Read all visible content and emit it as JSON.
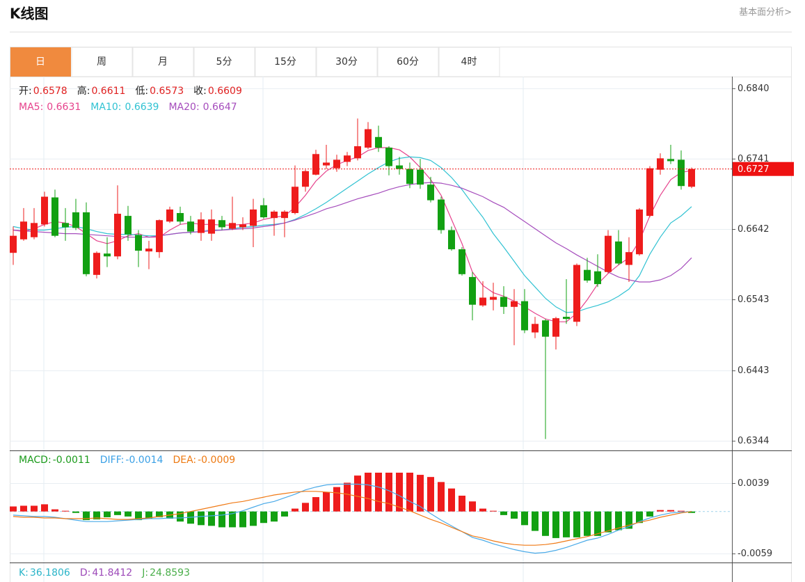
{
  "header": {
    "title": "K线图",
    "link": "基本面分析>"
  },
  "tabs": [
    "日",
    "周",
    "月",
    "5分",
    "15分",
    "30分",
    "60分",
    "4时"
  ],
  "active_tab": 0,
  "chart_data": [
    {
      "type": "candlestick",
      "legend": [
        {
          "label": "开:",
          "value": 0.6578
        },
        {
          "label": "高:",
          "value": 0.6611
        },
        {
          "label": "低:",
          "value": 0.6573
        },
        {
          "label": "收:",
          "value": 0.6609
        }
      ],
      "legend_label_color": "#222",
      "legend_value_color": "#e02020",
      "up_color": "#ee1c1c",
      "down_color": "#12a012",
      "open": [
        0.6609,
        0.6628,
        0.6631,
        0.6649,
        0.6687,
        0.6651,
        0.6666,
        0.6666,
        0.6578,
        0.6608,
        0.6604,
        0.6661,
        0.6634,
        0.6611,
        0.661,
        0.6653,
        0.6665,
        0.6653,
        0.6637,
        0.6636,
        0.6655,
        0.6643,
        0.6645,
        0.6647,
        0.6676,
        0.6658,
        0.6658,
        0.6665,
        0.6702,
        0.6719,
        0.6732,
        0.6728,
        0.6737,
        0.6742,
        0.6757,
        0.6772,
        0.6757,
        0.6732,
        0.6727,
        0.6726,
        0.6705,
        0.6684,
        0.6641,
        0.6614,
        0.6575,
        0.6535,
        0.6543,
        0.6547,
        0.6533,
        0.6541,
        0.6497,
        0.6514,
        0.6491,
        0.6519,
        0.6512,
        0.6585,
        0.6583,
        0.6582,
        0.6625,
        0.6592,
        0.6607,
        0.6661,
        0.6726,
        0.6741,
        0.674,
        0.6702
      ],
      "high": [
        0.6646,
        0.6672,
        0.6672,
        0.6695,
        0.6698,
        0.6672,
        0.6685,
        0.668,
        0.6611,
        0.6631,
        0.6704,
        0.6675,
        0.6641,
        0.6626,
        0.6656,
        0.6674,
        0.6674,
        0.6661,
        0.6666,
        0.667,
        0.6661,
        0.6688,
        0.6659,
        0.6685,
        0.6686,
        0.6669,
        0.6669,
        0.6732,
        0.6726,
        0.6754,
        0.6761,
        0.6747,
        0.6751,
        0.6798,
        0.6793,
        0.6788,
        0.6759,
        0.6744,
        0.6736,
        0.6741,
        0.6716,
        0.6688,
        0.6646,
        0.6617,
        0.6582,
        0.6569,
        0.6567,
        0.6562,
        0.6558,
        0.6558,
        0.6519,
        0.6516,
        0.6519,
        0.6572,
        0.6594,
        0.6602,
        0.6607,
        0.6641,
        0.6641,
        0.6631,
        0.6672,
        0.6731,
        0.6749,
        0.6761,
        0.6753,
        0.6729
      ],
      "low": [
        0.6592,
        0.6626,
        0.6628,
        0.6646,
        0.6631,
        0.6626,
        0.6641,
        0.6576,
        0.6573,
        0.6589,
        0.66,
        0.6626,
        0.6589,
        0.6586,
        0.6602,
        0.6651,
        0.6649,
        0.6635,
        0.6626,
        0.6626,
        0.6641,
        0.6641,
        0.6641,
        0.6617,
        0.6657,
        0.6633,
        0.6631,
        0.6663,
        0.6695,
        0.6718,
        0.6727,
        0.6723,
        0.6731,
        0.6739,
        0.6755,
        0.6751,
        0.6718,
        0.6719,
        0.67,
        0.6699,
        0.668,
        0.6636,
        0.6612,
        0.6577,
        0.6514,
        0.6533,
        0.6528,
        0.6523,
        0.6479,
        0.6496,
        0.6489,
        0.6347,
        0.6473,
        0.6509,
        0.6506,
        0.6567,
        0.6561,
        0.658,
        0.6592,
        0.6568,
        0.6605,
        0.6659,
        0.6719,
        0.6734,
        0.6698,
        0.67
      ],
      "close": [
        0.6633,
        0.6653,
        0.6651,
        0.6688,
        0.6633,
        0.6645,
        0.6644,
        0.6579,
        0.6609,
        0.6604,
        0.6664,
        0.6635,
        0.6612,
        0.6615,
        0.6655,
        0.667,
        0.6653,
        0.6639,
        0.6656,
        0.6656,
        0.6645,
        0.6651,
        0.6649,
        0.667,
        0.6659,
        0.6667,
        0.6667,
        0.6702,
        0.6724,
        0.6748,
        0.6736,
        0.674,
        0.6746,
        0.6759,
        0.6783,
        0.6757,
        0.6731,
        0.6727,
        0.6706,
        0.6705,
        0.6683,
        0.6641,
        0.6614,
        0.6579,
        0.6536,
        0.6546,
        0.6547,
        0.6533,
        0.6541,
        0.65,
        0.6509,
        0.6491,
        0.6517,
        0.6516,
        0.6592,
        0.657,
        0.6565,
        0.6633,
        0.6594,
        0.661,
        0.667,
        0.6728,
        0.6742,
        0.6738,
        0.6703,
        0.6727
      ],
      "series": [
        {
          "name": "MA5:",
          "current": 0.6631,
          "color": "#e6428c",
          "values": [
            0.6641,
            0.6639,
            0.6643,
            0.6649,
            0.6653,
            0.6651,
            0.6646,
            0.6636,
            0.6626,
            0.6622,
            0.6626,
            0.6633,
            0.6636,
            0.6631,
            0.6631,
            0.6641,
            0.6649,
            0.6651,
            0.6649,
            0.6649,
            0.6648,
            0.6648,
            0.6649,
            0.6651,
            0.6656,
            0.6659,
            0.6661,
            0.6673,
            0.669,
            0.671,
            0.6724,
            0.6733,
            0.6739,
            0.6744,
            0.6753,
            0.6757,
            0.6757,
            0.6754,
            0.6744,
            0.6729,
            0.6712,
            0.669,
            0.6656,
            0.6622,
            0.6582,
            0.6563,
            0.6553,
            0.6548,
            0.6541,
            0.6533,
            0.6524,
            0.6516,
            0.6512,
            0.6512,
            0.6524,
            0.6543,
            0.6565,
            0.658,
            0.6592,
            0.6602,
            0.6626,
            0.6661,
            0.669,
            0.6712,
            0.6722,
            0.6725
          ]
        },
        {
          "name": "MA10:",
          "current": 0.6639,
          "color": "#30c2d2",
          "values": [
            0.6646,
            0.6643,
            0.6641,
            0.6641,
            0.6643,
            0.6645,
            0.6646,
            0.6643,
            0.6639,
            0.6636,
            0.6635,
            0.6635,
            0.6634,
            0.6633,
            0.6633,
            0.6635,
            0.6637,
            0.6638,
            0.6639,
            0.6641,
            0.6641,
            0.6643,
            0.6645,
            0.6646,
            0.6648,
            0.6649,
            0.6651,
            0.6656,
            0.6663,
            0.6671,
            0.668,
            0.669,
            0.67,
            0.671,
            0.672,
            0.6729,
            0.6737,
            0.6742,
            0.6744,
            0.6743,
            0.6739,
            0.6729,
            0.6715,
            0.6698,
            0.6678,
            0.6659,
            0.6636,
            0.6617,
            0.6597,
            0.6577,
            0.6561,
            0.6545,
            0.6533,
            0.6525,
            0.6526,
            0.6531,
            0.6535,
            0.654,
            0.6548,
            0.6558,
            0.6577,
            0.6607,
            0.6631,
            0.6651,
            0.6661,
            0.6674
          ]
        },
        {
          "name": "MA20:",
          "current": 0.6647,
          "color": "#a54cbc",
          "values": [
            0.6641,
            0.664,
            0.6639,
            0.6638,
            0.6637,
            0.6636,
            0.6636,
            0.6635,
            0.6634,
            0.6633,
            0.6632,
            0.6631,
            0.6631,
            0.6631,
            0.6633,
            0.6635,
            0.6637,
            0.6638,
            0.6639,
            0.664,
            0.6641,
            0.6642,
            0.6643,
            0.6644,
            0.6646,
            0.6648,
            0.6651,
            0.6655,
            0.666,
            0.6665,
            0.6671,
            0.6675,
            0.668,
            0.6685,
            0.6689,
            0.6693,
            0.6698,
            0.6702,
            0.6705,
            0.6707,
            0.6708,
            0.6707,
            0.6704,
            0.67,
            0.6694,
            0.6688,
            0.668,
            0.6673,
            0.6663,
            0.6653,
            0.6643,
            0.6633,
            0.6623,
            0.6615,
            0.6606,
            0.6598,
            0.659,
            0.6582,
            0.6575,
            0.6571,
            0.6568,
            0.6568,
            0.6571,
            0.6577,
            0.6587,
            0.6602
          ]
        }
      ],
      "ylim": [
        0.6331,
        0.6857
      ],
      "yticks": [
        {
          "value": 0.684,
          "label": "0.6840"
        },
        0.6741,
        0.6642,
        0.6543,
        0.6443,
        0.6344
      ],
      "current_price": 0.6727,
      "current_color": "#ee1111",
      "grid": true
    },
    {
      "type": "macd",
      "legend": [
        {
          "label": "MACD:",
          "value": -0.0011,
          "color": "#1a9a1a"
        },
        {
          "label": "DIFF:",
          "value": -0.0014,
          "color": "#3aa0e6"
        },
        {
          "label": "DEA:",
          "value": -0.0009,
          "color": "#ee7a12"
        }
      ],
      "up_color": "#ee1c1c",
      "down_color": "#12a012",
      "values": [
        0.0007,
        0.0008,
        0.0008,
        0.001,
        0.0003,
        0.0001,
        -0.0002,
        -0.0012,
        -0.0011,
        -0.0008,
        -0.0005,
        -0.0007,
        -0.0012,
        -0.001,
        -0.0008,
        -0.001,
        -0.0014,
        -0.0017,
        -0.0019,
        -0.002,
        -0.0022,
        -0.0022,
        -0.0022,
        -0.002,
        -0.0016,
        -0.0014,
        -0.0007,
        0.0004,
        0.0012,
        0.002,
        0.0027,
        0.0034,
        0.004,
        0.005,
        0.0054,
        0.0054,
        0.0054,
        0.0054,
        0.0054,
        0.0051,
        0.0048,
        0.0041,
        0.0032,
        0.0022,
        0.0014,
        0.0004,
        0.0001,
        -0.0005,
        -0.001,
        -0.0019,
        -0.0027,
        -0.0034,
        -0.0037,
        -0.0036,
        -0.0036,
        -0.0034,
        -0.0034,
        -0.0029,
        -0.0026,
        -0.0024,
        -0.0016,
        -0.0007,
        0.0002,
        0.0002,
        0.0001,
        -0.0002
      ],
      "series": [
        {
          "name": "DIFF",
          "color": "#4aaae8",
          "values": [
            -0.0005,
            -0.0006,
            -0.0007,
            -0.0007,
            -0.0008,
            -0.001,
            -0.0012,
            -0.0014,
            -0.0014,
            -0.0014,
            -0.0013,
            -0.0012,
            -0.0011,
            -0.001,
            -0.001,
            -0.0009,
            -0.0009,
            -0.0008,
            -0.0007,
            -0.0006,
            -0.0005,
            -0.0003,
            0.0001,
            0.0006,
            0.0011,
            0.0014,
            0.0019,
            0.0024,
            0.003,
            0.0034,
            0.0037,
            0.0038,
            0.0038,
            0.0038,
            0.0037,
            0.0034,
            0.0029,
            0.0022,
            0.0014,
            0.0007,
            -0.0003,
            -0.0012,
            -0.002,
            -0.0028,
            -0.0036,
            -0.004,
            -0.0045,
            -0.0049,
            -0.0053,
            -0.0056,
            -0.0058,
            -0.0057,
            -0.0054,
            -0.005,
            -0.0045,
            -0.004,
            -0.0037,
            -0.0032,
            -0.0026,
            -0.0021,
            -0.0014,
            -0.0009,
            -0.0005,
            -0.0002,
            -0.0001,
            0
          ]
        },
        {
          "name": "DEA",
          "color": "#f07a16",
          "values": [
            -0.0007,
            -0.0008,
            -0.0008,
            -0.0009,
            -0.0009,
            -0.001,
            -0.001,
            -0.001,
            -0.0009,
            -0.001,
            -0.0011,
            -0.0011,
            -0.001,
            -0.0009,
            -0.0007,
            -0.0005,
            -0.0003,
            0,
            0.0003,
            0.0006,
            0.0009,
            0.0012,
            0.0014,
            0.0017,
            0.002,
            0.0023,
            0.0025,
            0.0027,
            0.0028,
            0.0028,
            0.0027,
            0.0026,
            0.0024,
            0.0021,
            0.0018,
            0.0014,
            0.0011,
            0.0006,
            0.0001,
            -0.0005,
            -0.0011,
            -0.0016,
            -0.0022,
            -0.0028,
            -0.0034,
            -0.0037,
            -0.0041,
            -0.0044,
            -0.0046,
            -0.0047,
            -0.0047,
            -0.0046,
            -0.0044,
            -0.0041,
            -0.0038,
            -0.0035,
            -0.0031,
            -0.0027,
            -0.0023,
            -0.0019,
            -0.0015,
            -0.0012,
            -0.0008,
            -0.0005,
            -0.0002,
            0
          ]
        }
      ],
      "ylim": [
        -0.0071,
        0.0084
      ],
      "yticks": [
        0.0039,
        -0.0059
      ],
      "grid": true
    },
    {
      "type": "kdj",
      "legend": [
        {
          "label": "K:",
          "value": 36.1806,
          "color": "#2ab4c8"
        },
        {
          "label": "D:",
          "value": 41.8412,
          "color": "#9c48b8"
        },
        {
          "label": "J:",
          "value": 24.8593,
          "color": "#4aae4a"
        }
      ]
    }
  ]
}
